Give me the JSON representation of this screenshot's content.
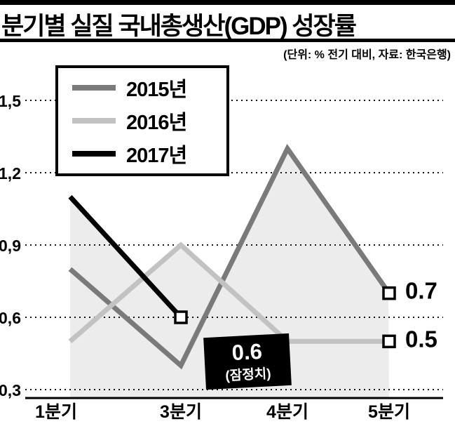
{
  "header": {
    "title": "분기별 실질 국내총생산(GDP) 성장률",
    "subtitle": "(단위: % 전기 대비, 자료: 한국은행)"
  },
  "legend": {
    "position": "top-left",
    "items": [
      {
        "label": "2015년",
        "color": "#7a7a7a"
      },
      {
        "label": "2016년",
        "color": "#c2c2c2"
      },
      {
        "label": "2017년",
        "color": "#000000"
      }
    ]
  },
  "chart_data": {
    "type": "line",
    "title": "분기별 실질 국내총생산(GDP) 성장률",
    "unit_note": "(단위: % 전기 대비, 자료: 한국은행)",
    "categories": [
      "1분기",
      "3분기",
      "4분기",
      "5분기"
    ],
    "y_ticks": [
      {
        "label": "1,5",
        "value": 1.5
      },
      {
        "label": "1,2",
        "value": 1.2
      },
      {
        "label": "0,9",
        "value": 0.9
      },
      {
        "label": "0,6",
        "value": 0.6
      },
      {
        "label": "0,3",
        "value": 0.3
      }
    ],
    "ylim": [
      0.27,
      1.53
    ],
    "grid": "dotted-horizontal",
    "area_fill_color": "#ececec",
    "series": [
      {
        "name": "2015년",
        "color": "#7a7a7a",
        "values": [
          0.8,
          0.4,
          1.3,
          0.7
        ]
      },
      {
        "name": "2016년",
        "color": "#c2c2c2",
        "values": [
          0.5,
          0.9,
          0.5,
          0.5
        ]
      },
      {
        "name": "2017년",
        "color": "#000000",
        "values": [
          1.1,
          0.6,
          null,
          null
        ]
      }
    ],
    "markers": [
      {
        "series": 0,
        "point": 3
      },
      {
        "series": 1,
        "point": 3
      },
      {
        "series": 2,
        "point": 1
      }
    ],
    "end_labels": [
      {
        "text": "0.7",
        "series": 0,
        "point": 3
      },
      {
        "text": "0.5",
        "series": 1,
        "point": 3
      }
    ],
    "callout": {
      "value": "0.6",
      "note": "(잠정치)",
      "series": 2,
      "point": 1,
      "bg": "#000000",
      "text_color": "#ffffff"
    }
  }
}
